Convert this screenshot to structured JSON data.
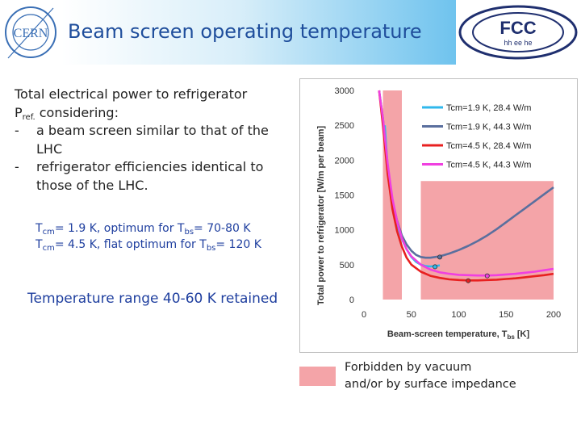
{
  "header": {
    "title": "Beam screen operating temperature",
    "cern_logo_text": "CERN",
    "fcc_logo_text": "FCC",
    "fcc_logo_subtext": "hh ee he"
  },
  "text": {
    "line1": "Total  electrical power to refrigerator",
    "pref_main": "P",
    "pref_sub": "ref.",
    "pref_rest": " considering:",
    "bullet_char": "-",
    "bullet1_line1": "a beam screen similar to that of the",
    "bullet1_line2": "LHC",
    "bullet2_line1": "refrigerator efficiencies identical to",
    "bullet2_line2": "those of the LHC."
  },
  "notes": {
    "n1_T": "T",
    "n1_cm": "cm",
    "n1_mid": "= 1.9 K, optimum for T",
    "n1_bs": "bs",
    "n1_end": "= 70-80 K",
    "n2_T": "T",
    "n2_cm": "cm",
    "n2_mid": "= 4.5 K, flat optimum for T",
    "n2_bs": "bs",
    "n2_end": "= 120 K"
  },
  "retained": "Temperature range 40-60 K retained",
  "forbidden_legend": {
    "line1": "Forbidden by vacuum",
    "line2": "and/or by surface impedance",
    "color": "#f4a4a8"
  },
  "chart_data": {
    "type": "line",
    "xlabel": "Beam-screen temperature, T",
    "xlabel_sub": "bs",
    "xlabel_unit": " [K]",
    "ylabel": "Total power to refrigerator [W/m per beam]",
    "xlim": [
      0,
      200
    ],
    "ylim": [
      0,
      3000
    ],
    "xticks": [
      "0",
      "50",
      "100",
      "150",
      "200"
    ],
    "yticks": [
      "0",
      "500",
      "1000",
      "1500",
      "2000",
      "2500",
      "3000"
    ],
    "legend_position": "top-right",
    "forbidden_regions": [
      {
        "x0": 20,
        "x1": 40,
        "y0": 0,
        "y1": 3000
      },
      {
        "x0": 60,
        "x1": 200,
        "y0": 0,
        "y1": 1700
      }
    ],
    "series": [
      {
        "name": "Tcm=1.9 K, 28.4 W/m",
        "color": "#30b8ec",
        "x": [
          22,
          25,
          30,
          35,
          40,
          45,
          50,
          55,
          60,
          65,
          70,
          75,
          80
        ],
        "y": [
          2500,
          1900,
          1380,
          1080,
          870,
          720,
          610,
          540,
          500,
          480,
          475,
          480,
          490
        ]
      },
      {
        "name": "Tcm=1.9 K, 44.3 W/m",
        "color": "#5a6f9e",
        "x": [
          16,
          20,
          25,
          30,
          35,
          40,
          45,
          50,
          55,
          60,
          65,
          70,
          80,
          90,
          100,
          110,
          120,
          130,
          140,
          150,
          160,
          170,
          180,
          190,
          200
        ],
        "y": [
          3000,
          2600,
          1900,
          1420,
          1130,
          920,
          790,
          700,
          640,
          610,
          600,
          600,
          620,
          660,
          710,
          770,
          840,
          920,
          1010,
          1110,
          1210,
          1310,
          1410,
          1510,
          1610
        ]
      },
      {
        "name": "Tcm=4.5 K, 28.4 W/m",
        "color": "#e82020",
        "x": [
          16,
          20,
          25,
          30,
          35,
          40,
          45,
          50,
          60,
          70,
          80,
          90,
          100,
          110,
          120,
          130,
          140,
          150,
          160,
          170,
          180,
          190,
          200
        ],
        "y": [
          3000,
          2500,
          1800,
          1300,
          980,
          760,
          600,
          500,
          400,
          340,
          310,
          290,
          280,
          275,
          275,
          280,
          285,
          295,
          305,
          320,
          335,
          350,
          370
        ]
      },
      {
        "name": "Tcm=4.5 K, 44.3 W/m",
        "color": "#f040e0",
        "x": [
          16,
          20,
          25,
          30,
          35,
          40,
          45,
          50,
          60,
          70,
          80,
          90,
          100,
          110,
          120,
          130,
          140,
          150,
          160,
          170,
          180,
          190,
          200
        ],
        "y": [
          3000,
          2600,
          1950,
          1450,
          1120,
          880,
          720,
          620,
          500,
          430,
          390,
          370,
          355,
          350,
          345,
          345,
          350,
          360,
          370,
          385,
          400,
          420,
          440
        ]
      }
    ],
    "markers": [
      {
        "series": 0,
        "x": 75,
        "y": 470
      },
      {
        "series": 1,
        "x": 80,
        "y": 610
      },
      {
        "series": 2,
        "x": 110,
        "y": 270
      },
      {
        "series": 3,
        "x": 130,
        "y": 340
      }
    ]
  }
}
